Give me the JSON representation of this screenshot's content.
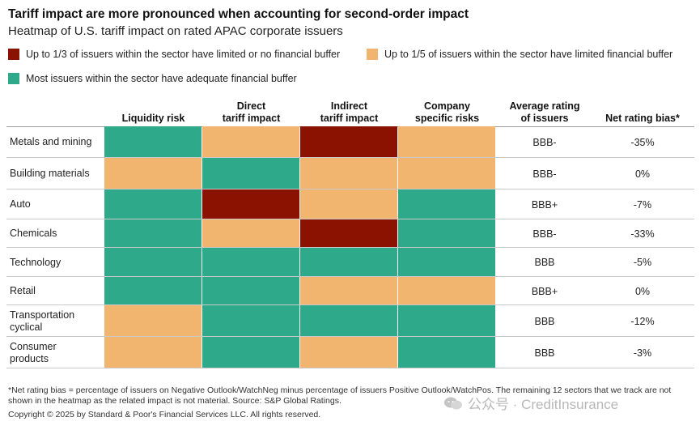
{
  "title": "Tariff impact are more pronounced when accounting for second-order impact",
  "subtitle": "Heatmap of U.S. tariff impact on rated APAC corporate issuers",
  "legend": [
    {
      "label": "Up to 1/3 of issuers within the sector have limited or no financial buffer",
      "color": "#8b1200"
    },
    {
      "label": "Up to 1/5 of issuers within the sector have limited financial buffer",
      "color": "#f2b56f"
    },
    {
      "label": "Most issuers within the sector have adequate financial buffer",
      "color": "#2eaa8a"
    }
  ],
  "colors": {
    "red": "#8b1200",
    "orange": "#f2b56f",
    "green": "#2eaa8a"
  },
  "chart_data": {
    "type": "heatmap",
    "title": "Tariff impact are more pronounced when accounting for second-order impact",
    "columns": [
      "Liquidity risk",
      "Direct\ntariff impact",
      "Indirect\ntariff impact",
      "Company\nspecific risks",
      "Average rating\nof issuers",
      "Net rating bias*"
    ],
    "rows": [
      {
        "sector": "Metals and mining",
        "cells": [
          "green",
          "orange",
          "red",
          "orange"
        ],
        "rating": "BBB-",
        "bias": "-35%"
      },
      {
        "sector": "Building materials",
        "cells": [
          "orange",
          "green",
          "orange",
          "orange"
        ],
        "rating": "BBB-",
        "bias": "0%"
      },
      {
        "sector": "Auto",
        "cells": [
          "green",
          "red",
          "orange",
          "green"
        ],
        "rating": "BBB+",
        "bias": "-7%"
      },
      {
        "sector": "Chemicals",
        "cells": [
          "green",
          "orange",
          "red",
          "green"
        ],
        "rating": "BBB-",
        "bias": "-33%"
      },
      {
        "sector": "Technology",
        "cells": [
          "green",
          "green",
          "green",
          "green"
        ],
        "rating": "BBB",
        "bias": "-5%"
      },
      {
        "sector": "Retail",
        "cells": [
          "green",
          "green",
          "orange",
          "orange"
        ],
        "rating": "BBB+",
        "bias": "0%"
      },
      {
        "sector": "Transportation\ncyclical",
        "cells": [
          "orange",
          "green",
          "green",
          "green"
        ],
        "rating": "BBB",
        "bias": "-12%"
      },
      {
        "sector": "Consumer\nproducts",
        "cells": [
          "orange",
          "green",
          "orange",
          "green"
        ],
        "rating": "BBB",
        "bias": "-3%"
      }
    ]
  },
  "footnote": "*Net rating bias = percentage of issuers on Negative Outlook/WatchNeg minus percentage of issuers Positive Outlook/WatchPos. The remaining 12 sectors that we track are not shown in the heatmap as the related impact is not material. Source: S&P Global Ratings.",
  "copyright": "Copyright © 2025 by Standard & Poor's Financial Services LLC. All rights reserved.",
  "watermark": "公众号 · CreditInsurance"
}
